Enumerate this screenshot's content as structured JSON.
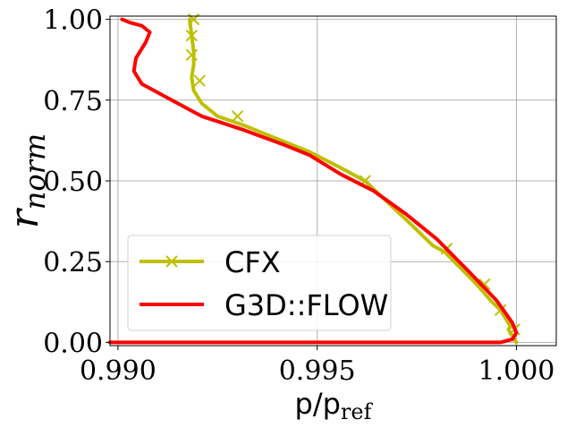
{
  "chart_data": {
    "type": "line",
    "xlabel": "p/p",
    "xlabel_sub": "ref",
    "ylabel": "r",
    "ylabel_sub": "norm",
    "xlim": [
      0.9898,
      1.001
    ],
    "ylim": [
      -0.01,
      1.01
    ],
    "xticks": [
      0.99,
      0.995,
      1.0
    ],
    "xtick_labels": [
      "0.990",
      "0.995",
      "1.000"
    ],
    "yticks": [
      0.0,
      0.25,
      0.5,
      0.75,
      1.0
    ],
    "ytick_labels": [
      "0.00",
      "0.25",
      "0.50",
      "0.75",
      "1.00"
    ],
    "grid": true,
    "legend_position": "lower-left",
    "series": [
      {
        "name": "CFX",
        "color": "#bfbf00",
        "marker": "x",
        "x": [
          1.0,
          0.9998,
          0.99985,
          0.9996,
          0.99935,
          0.999,
          0.9986,
          0.9982,
          0.9979,
          0.9974,
          0.9968,
          0.9962,
          0.9956,
          0.9948,
          0.994,
          0.9932,
          0.9925,
          0.9921,
          0.9919,
          0.99185,
          0.9919,
          0.9919,
          0.99185,
          0.9918
        ],
        "y": [
          0.0,
          0.04,
          0.05,
          0.1,
          0.13,
          0.18,
          0.23,
          0.28,
          0.3,
          0.36,
          0.43,
          0.5,
          0.54,
          0.59,
          0.63,
          0.67,
          0.7,
          0.74,
          0.78,
          0.82,
          0.86,
          0.9,
          0.95,
          1.0
        ],
        "marker_x": [
          0.99995,
          0.9996,
          0.9992,
          0.99825,
          0.9962,
          0.993,
          0.99205,
          0.99185,
          0.99185,
          0.9919
        ],
        "marker_y": [
          0.04,
          0.1,
          0.18,
          0.29,
          0.5,
          0.7,
          0.81,
          0.89,
          0.95,
          1.0
        ]
      },
      {
        "name": "G3D::FLOW",
        "color": "#ff0000",
        "marker": "none",
        "x": [
          0.9898,
          0.9996,
          0.9999,
          1.0,
          0.9999,
          0.9995,
          0.9988,
          0.998,
          0.9972,
          0.9964,
          0.9956,
          0.9948,
          0.9942,
          0.9931,
          0.9921,
          0.9912,
          0.9906,
          0.9904,
          0.99045,
          0.9907,
          0.9908,
          0.9906,
          0.9903,
          0.9901
        ],
        "y": [
          0.0,
          0.0,
          0.01,
          0.03,
          0.06,
          0.13,
          0.22,
          0.32,
          0.4,
          0.47,
          0.52,
          0.58,
          0.61,
          0.66,
          0.7,
          0.76,
          0.8,
          0.84,
          0.88,
          0.93,
          0.96,
          0.98,
          0.99,
          1.0
        ]
      }
    ]
  }
}
